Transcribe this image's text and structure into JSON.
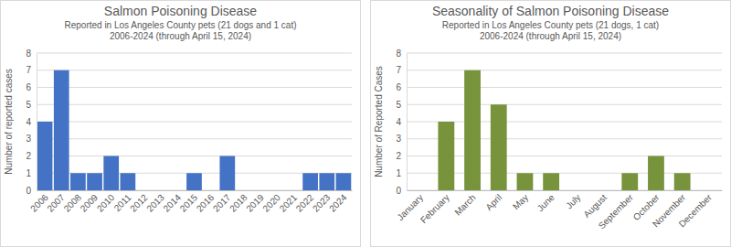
{
  "chart_data": [
    {
      "type": "bar",
      "title": "Salmon Poisoning Disease",
      "subtitle": [
        "Reported in Los Angeles County pets (21 dogs and 1 cat)",
        "2006-2024 (through April 15, 2024)"
      ],
      "y_label": "Number of reported cases",
      "categories": [
        "2006",
        "2007",
        "2008",
        "2009",
        "2010",
        "2011",
        "2012",
        "2013",
        "2014",
        "2015",
        "2016",
        "2017",
        "2018",
        "2019",
        "2020",
        "2021",
        "2022",
        "2023",
        "2024"
      ],
      "values": [
        4,
        7,
        1,
        1,
        2,
        1,
        0,
        0,
        0,
        1,
        0,
        2,
        0,
        0,
        0,
        0,
        1,
        1,
        1
      ],
      "color": "#4472c4",
      "ylim": [
        0,
        8
      ],
      "yticks": [
        0,
        1,
        2,
        3,
        4,
        5,
        6,
        7,
        8
      ],
      "grid": true
    },
    {
      "type": "bar",
      "title": "Seasonality of Salmon Poisoning Disease",
      "subtitle": [
        "Reported in Los Angeles County pets (21 dogs, 1 cat)",
        "2006-2024 (through April 15, 2024)"
      ],
      "y_label": "Number of Reported Cases",
      "categories": [
        "January",
        "February",
        "March",
        "April",
        "May",
        "June",
        "July",
        "August",
        "September",
        "October",
        "November",
        "December"
      ],
      "values": [
        0,
        4,
        7,
        5,
        1,
        1,
        0,
        0,
        1,
        2,
        1,
        0
      ],
      "color": "#77933c",
      "ylim": [
        0,
        8
      ],
      "yticks": [
        0,
        1,
        2,
        3,
        4,
        5,
        6,
        7,
        8
      ],
      "grid": true
    }
  ]
}
